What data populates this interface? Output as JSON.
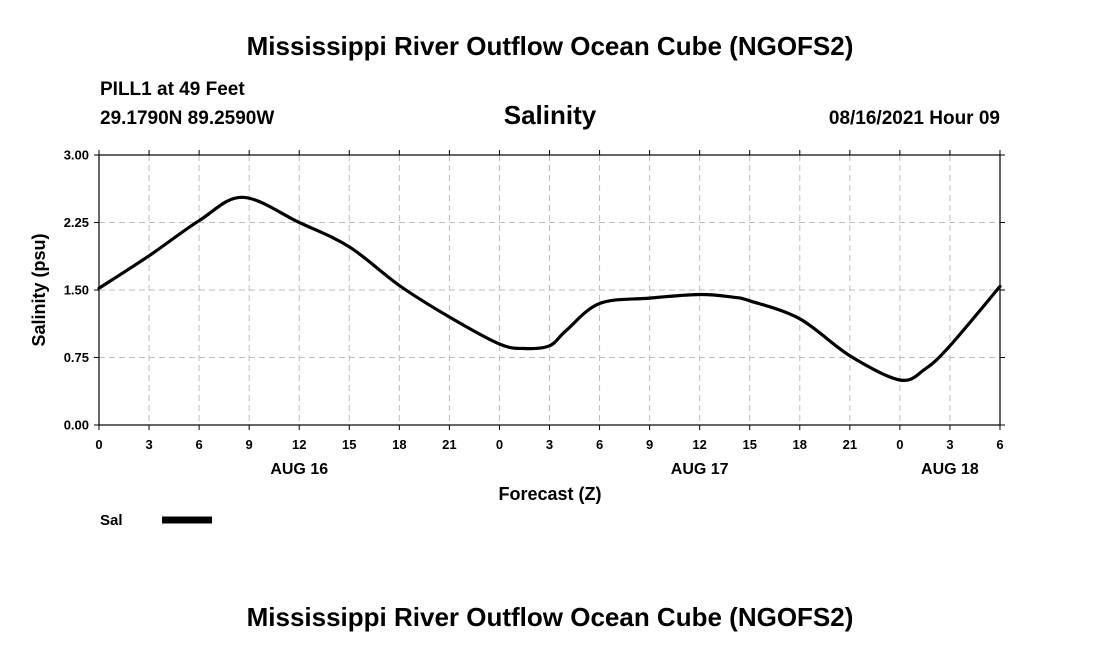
{
  "header": {
    "main_title": "Mississippi River Outflow Ocean Cube (NGOFS2)",
    "station": "PILL1 at 49 Feet",
    "coordinates": "29.1790N  89.2590W",
    "variable": "Salinity",
    "forecast_time": "08/16/2021 Hour 09"
  },
  "footer": {
    "title": "Mississippi River Outflow Ocean Cube (NGOFS2)"
  },
  "legend": {
    "entries": [
      {
        "label": "Sal",
        "color": "#000000"
      }
    ]
  },
  "chart_data": {
    "type": "line",
    "title": "Salinity",
    "xlabel": "Forecast (Z)",
    "ylabel": "Salinity (psu)",
    "ylim": [
      0,
      3
    ],
    "xlim": [
      0,
      54
    ],
    "y_ticks": [
      "0.00",
      "0.75",
      "1.50",
      "2.25",
      "3.00"
    ],
    "y_tick_values": [
      0,
      0.75,
      1.5,
      2.25,
      3.0
    ],
    "x_tick_values": [
      0,
      3,
      6,
      9,
      12,
      15,
      18,
      21,
      24,
      27,
      30,
      33,
      36,
      39,
      42,
      45,
      48,
      51,
      54
    ],
    "x_tick_labels": [
      "0",
      "3",
      "6",
      "9",
      "12",
      "15",
      "18",
      "21",
      "0",
      "3",
      "6",
      "9",
      "12",
      "15",
      "18",
      "21",
      "0",
      "3",
      "6"
    ],
    "day_labels": [
      {
        "label": "AUG 16",
        "x": 12
      },
      {
        "label": "AUG 17",
        "x": 36
      },
      {
        "label": "AUG 18",
        "x": 51
      }
    ],
    "grid": true,
    "series": [
      {
        "name": "Sal",
        "color": "#000000",
        "x": [
          0,
          3,
          6,
          8.6,
          12,
          15,
          18,
          21,
          24,
          25.5,
          27,
          28,
          30,
          33,
          36,
          38,
          39,
          42,
          45,
          48,
          49.5,
          51,
          54
        ],
        "y": [
          1.52,
          1.88,
          2.27,
          2.53,
          2.25,
          1.98,
          1.55,
          1.2,
          0.9,
          0.85,
          0.88,
          1.05,
          1.35,
          1.41,
          1.45,
          1.42,
          1.38,
          1.18,
          0.77,
          0.5,
          0.62,
          0.88,
          1.54
        ]
      }
    ]
  }
}
